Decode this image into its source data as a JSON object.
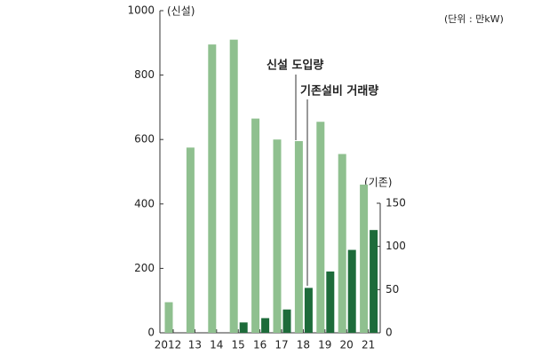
{
  "chart_data": {
    "type": "bar",
    "categories": [
      "2012",
      "13",
      "14",
      "15",
      "16",
      "17",
      "18",
      "19",
      "20",
      "21"
    ],
    "series": [
      {
        "name": "신설 도입량",
        "color": "#8fc08f",
        "values": [
          95,
          575,
          895,
          910,
          665,
          600,
          595,
          655,
          555,
          460
        ]
      },
      {
        "name": "기존설비 거래량",
        "color": "#1d6b3a",
        "axis": "y2",
        "values": [
          null,
          null,
          null,
          12,
          17,
          27,
          52,
          71,
          96,
          119
        ]
      }
    ],
    "ylabel": "(신설)",
    "y2label": "(기존)",
    "unit_note": "(단위 : 만kW)",
    "ylim": [
      0,
      1000
    ],
    "yticks": [
      0,
      200,
      400,
      600,
      800,
      1000
    ],
    "y2lim": [
      0,
      150
    ],
    "y2ticks": [
      0,
      50,
      100,
      150
    ]
  }
}
